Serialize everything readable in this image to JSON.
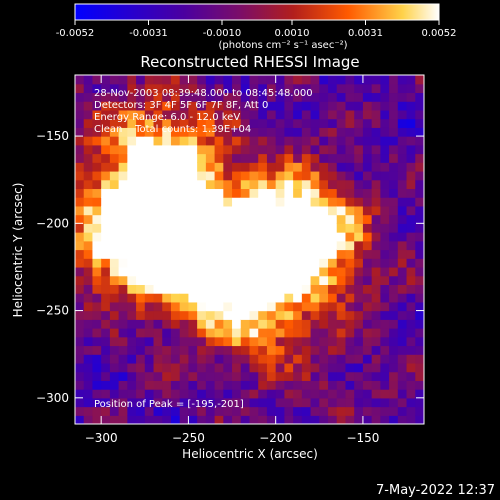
{
  "colorbar": {
    "ticks": [
      "-0.0052",
      "-0.0031",
      "-0.0010",
      "0.0010",
      "0.0031",
      "0.0052"
    ],
    "tick_values": [
      -0.0052,
      -0.0031,
      -0.001,
      0.001,
      0.0031,
      0.0052
    ],
    "range": [
      -0.0052,
      0.0052
    ],
    "unit_label": "(photons cm⁻² s⁻¹ asec⁻²)",
    "colors": [
      "#0000ff",
      "#4b00a0",
      "#7a0d6a",
      "#b21f1c",
      "#ff5a00",
      "#ffd24a",
      "#ffffff"
    ]
  },
  "chart_data": {
    "type": "heatmap",
    "title": "Reconstructed RHESSI Image",
    "xlabel": "Heliocentric X (arcsec)",
    "ylabel": "Heliocentric Y (arcsec)",
    "xlim": [
      -315,
      -115
    ],
    "ylim": [
      -315,
      -115
    ],
    "xticks": [
      -300,
      -250,
      -200,
      -150
    ],
    "yticks": [
      -150,
      -200,
      -250,
      -300
    ],
    "peak": {
      "x": -195,
      "y": -201
    },
    "bright_sources": [
      {
        "x": -287,
        "y": -209,
        "intensity": 1.0
      },
      {
        "x": -265,
        "y": -163,
        "intensity": 0.95
      },
      {
        "x": -260,
        "y": -200,
        "intensity": 0.9
      },
      {
        "x": -240,
        "y": -223,
        "intensity": 0.85
      },
      {
        "x": -195,
        "y": -201,
        "intensity": 1.0
      },
      {
        "x": -175,
        "y": -210,
        "intensity": 0.7
      },
      {
        "x": -210,
        "y": -247,
        "intensity": 0.7
      }
    ]
  },
  "annotations": {
    "line1": "28-Nov-2003 08:39:48.000 to 08:45:48.000",
    "line2": "Detectors: 3F 4F 5F 6F 7F 8F, Att 0",
    "line3": "Energy Range: 6.0 - 12.0 keV",
    "line4": "Clean    Total counts: 1.39E+04",
    "peak_label": "Position of Peak = [-195,-201]"
  },
  "timestamp": "7-May-2022 12:37"
}
